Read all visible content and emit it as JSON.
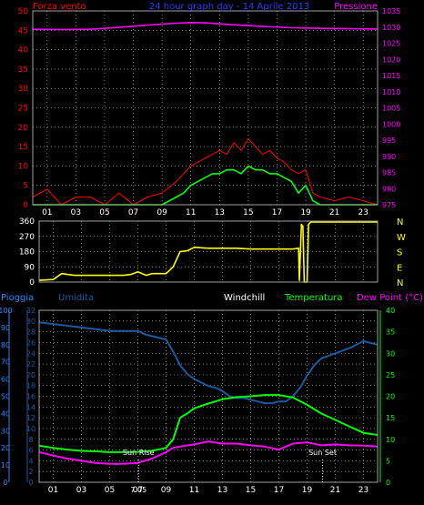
{
  "chart_data": [
    {
      "type": "line",
      "title": "24 hour graph day - 14 Aprile 2013",
      "left_axis_label": "Forza vento",
      "right_axis_label": "Pressione",
      "left_ylim": [
        0,
        50
      ],
      "left_ticks": [
        "0",
        "5",
        "10",
        "15",
        "20",
        "25",
        "30",
        "35",
        "40",
        "45",
        "50"
      ],
      "right_ylim": [
        975,
        1035
      ],
      "right_ticks": [
        "975",
        "980",
        "985",
        "990",
        "995",
        "1000",
        "1005",
        "1010",
        "1015",
        "1020",
        "1025",
        "1030",
        "1035"
      ],
      "xlim": [
        0,
        24
      ],
      "x_ticks": [
        "01",
        "03",
        "05",
        "07",
        "09",
        "11",
        "13",
        "15",
        "17",
        "19",
        "21",
        "23"
      ],
      "grid": true,
      "colors": {
        "gust": "#ff0000",
        "wind": "#00ff00",
        "pressure": "#ff00ff"
      },
      "series": [
        {
          "key": "pressure",
          "x": [
            0,
            2,
            4,
            6,
            8,
            10,
            11,
            12,
            13,
            14,
            16,
            18,
            20,
            22,
            24
          ],
          "values": [
            1029.3,
            1029.2,
            1029.3,
            1029.9,
            1030.6,
            1031.2,
            1031.4,
            1031.3,
            1031.0,
            1030.7,
            1030.2,
            1029.8,
            1029.6,
            1029.5,
            1029.4
          ]
        },
        {
          "key": "gust",
          "x": [
            0,
            1,
            2,
            3,
            4,
            5,
            6,
            7,
            8,
            9,
            10,
            10.5,
            11,
            11.5,
            12,
            12.5,
            13,
            13.5,
            14,
            14.5,
            15,
            15.5,
            16,
            16.5,
            17,
            17.5,
            18,
            18.5,
            19,
            19.5,
            20,
            21,
            22,
            23,
            24
          ],
          "values": [
            2,
            4,
            0,
            2,
            2,
            0,
            3,
            0,
            2,
            3,
            6,
            8,
            10,
            11,
            12,
            13,
            14,
            13,
            16,
            14,
            17,
            15,
            13,
            14,
            12,
            11,
            9,
            8,
            9,
            3,
            2,
            1,
            2,
            1,
            0
          ]
        },
        {
          "key": "wind",
          "x": [
            0,
            1,
            2,
            3,
            4,
            5,
            6,
            7,
            8,
            9,
            10,
            10.5,
            11,
            11.5,
            12,
            12.5,
            13,
            13.5,
            14,
            14.5,
            15,
            15.5,
            16,
            16.5,
            17,
            17.5,
            18,
            18.5,
            19,
            19.5,
            20,
            21,
            22,
            23,
            24
          ],
          "values": [
            0,
            0,
            0,
            0,
            0,
            0,
            0,
            0,
            0,
            0,
            2,
            3,
            5,
            6,
            7,
            8,
            8,
            9,
            9,
            8,
            10,
            9,
            9,
            8,
            8,
            7,
            6,
            3,
            5,
            1,
            0,
            0,
            0,
            0,
            0
          ]
        }
      ]
    },
    {
      "type": "line",
      "ylim": [
        0,
        360
      ],
      "y_ticks": [
        "0",
        "90",
        "180",
        "270",
        "360"
      ],
      "compass_labels": [
        "N",
        "W",
        "S",
        "E",
        "N"
      ],
      "xlim": [
        0,
        24
      ],
      "grid": true,
      "color": "#ffff00",
      "series": [
        {
          "key": "direction",
          "x": [
            0,
            1,
            1.6,
            2,
            2.5,
            3,
            4,
            5,
            6,
            6.5,
            7,
            7.6,
            8,
            9,
            9.5,
            10,
            10.5,
            11,
            12,
            13,
            14,
            15,
            16,
            17,
            18,
            18.4,
            18.45,
            18.6,
            18.7,
            18.8,
            19,
            19.1,
            19.2,
            19.3,
            19.5,
            20,
            21,
            22,
            23,
            24
          ],
          "values": [
            10,
            15,
            50,
            45,
            40,
            40,
            40,
            40,
            40,
            45,
            60,
            40,
            50,
            50,
            90,
            180,
            185,
            205,
            200,
            200,
            200,
            195,
            195,
            195,
            195,
            200,
            10,
            340,
            330,
            0,
            0,
            340,
            350,
            355,
            355,
            355,
            355,
            355,
            355,
            355
          ]
        }
      ]
    },
    {
      "type": "line",
      "labels": {
        "rain": "Pioggia",
        "humidity": "Umidita",
        "windchill": "Windchill",
        "temperature": "Temperatura",
        "dew": "Dew Point (°C)"
      },
      "rain_ticks": [
        "0",
        "2",
        "4",
        "6",
        "8",
        "10",
        "12",
        "14",
        "16",
        "18",
        "20",
        "22",
        "24",
        "26",
        "28",
        "30",
        "32"
      ],
      "humidity_ticks": [
        "0",
        "10",
        "20",
        "30",
        "40",
        "50",
        "60",
        "70",
        "80",
        "90",
        "100"
      ],
      "temp_ylim": [
        0,
        40
      ],
      "temp_ticks": [
        "0",
        "5",
        "10",
        "15",
        "20",
        "25",
        "30",
        "35",
        "40"
      ],
      "humidity_ylim": [
        0,
        100
      ],
      "xlim": [
        0,
        24
      ],
      "x_ticks": [
        "01",
        "03",
        "05",
        "07",
        "09",
        "11",
        "13",
        "15",
        "17",
        "19",
        "21",
        "23"
      ],
      "annotations": [
        {
          "text": "Sun Rise",
          "x": 7.05
        },
        {
          "text": "Sun Set",
          "x": 20.1
        }
      ],
      "cursor_label": "7.05",
      "grid": true,
      "colors": {
        "humidity": "#1e5aa0",
        "temperature": "#00ff00",
        "dew": "#ff00ff"
      },
      "series": [
        {
          "key": "humidity",
          "axis": "humidity",
          "x": [
            0,
            1,
            2,
            3,
            4,
            5,
            6,
            7,
            7.5,
            8,
            9,
            9.5,
            10,
            10.5,
            11,
            11.5,
            12,
            12.5,
            13,
            13.5,
            14,
            14.5,
            15,
            15.5,
            16,
            16.5,
            17,
            17.5,
            18,
            18.5,
            19,
            19.5,
            20,
            21,
            22,
            23,
            24
          ],
          "values": [
            93,
            92,
            91,
            90,
            89,
            88,
            88,
            88,
            86,
            85,
            83,
            76,
            68,
            63,
            60,
            58,
            56,
            55,
            53,
            50,
            49,
            49,
            48,
            47,
            46,
            46,
            47,
            47,
            50,
            55,
            62,
            68,
            72,
            75,
            78,
            82,
            80
          ]
        },
        {
          "key": "temperature",
          "axis": "temp",
          "x": [
            0,
            1,
            2,
            3,
            4,
            5,
            6,
            7,
            8,
            9,
            9.5,
            10,
            10.5,
            11,
            12,
            13,
            14,
            15,
            16,
            17,
            18,
            19,
            20,
            21,
            22,
            23,
            24
          ],
          "values": [
            8.5,
            8.0,
            7.6,
            7.3,
            7.2,
            7.0,
            7.0,
            7.1,
            7.3,
            8.0,
            10.0,
            15.0,
            16.0,
            17.2,
            18.3,
            19.3,
            19.8,
            20.0,
            20.3,
            20.3,
            19.7,
            18.0,
            16.0,
            14.5,
            13.0,
            11.5,
            11.0
          ]
        },
        {
          "key": "dew",
          "axis": "temp",
          "x": [
            0,
            1,
            2,
            3,
            4,
            5,
            6,
            7,
            8,
            9,
            9.5,
            10,
            11,
            12,
            13,
            14,
            15,
            16,
            17,
            18,
            19,
            20,
            21,
            22,
            23,
            24
          ],
          "values": [
            7.0,
            6.2,
            5.5,
            5.0,
            4.5,
            4.3,
            4.3,
            4.5,
            5.5,
            7.0,
            8.0,
            8.3,
            8.8,
            9.5,
            9.0,
            9.0,
            8.6,
            8.3,
            7.6,
            9.0,
            9.3,
            8.6,
            8.8,
            8.6,
            8.5,
            8.3
          ]
        }
      ]
    }
  ]
}
